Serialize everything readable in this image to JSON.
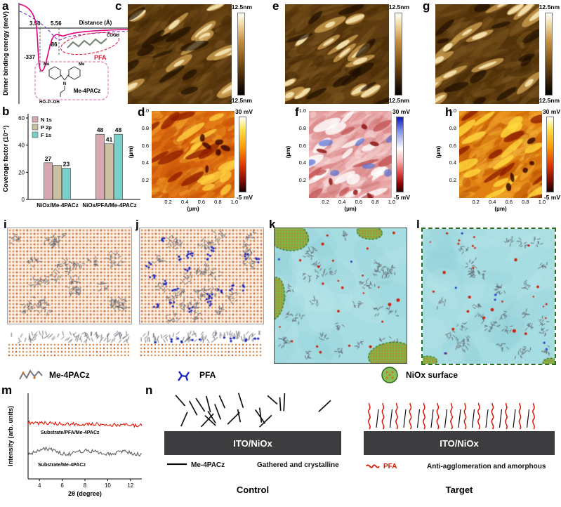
{
  "labels": {
    "a": "a",
    "b": "b",
    "c": "c",
    "d": "d",
    "e": "e",
    "f": "f",
    "g": "g",
    "h": "h",
    "i": "i",
    "j": "j",
    "k": "k",
    "l": "l",
    "m": "m",
    "n": "n"
  },
  "panel_a": {
    "ylabel": "Dimer binding energy (meV)",
    "xlabel": "Distance (Å)",
    "dist1": "3.50",
    "dist2": "5.56",
    "min_deep": "-337",
    "min_shallow": "-86",
    "pfa": "PFA",
    "me4pacz": "Me-4PACz",
    "cooh": "COOH",
    "n_atom": "N",
    "me1": "Me",
    "me2": "Me",
    "acid_group": "HO–P–OH"
  },
  "chart_data": [
    {
      "id": "a",
      "type": "line",
      "title": "Dimer binding energy vs distance",
      "xlabel": "Distance (Å)",
      "ylabel": "Dimer binding energy (meV)",
      "annotations": [
        {
          "x": "3.50",
          "y": "-337"
        },
        {
          "x": "5.56",
          "y": "-86"
        }
      ],
      "description": "Binding-energy curve with deep minimum -337 meV at 3.50 Å and shallow minimum -86 meV at 5.56 Å; inset molecular structures of PFA and Me-4PACz."
    },
    {
      "id": "b",
      "type": "bar",
      "ylabel": "Coverage factor (10⁻²)",
      "ylim": [
        0,
        60
      ],
      "yticks": [
        0,
        20,
        40,
        60
      ],
      "categories": [
        "NiOx/Me-4PACz",
        "NiOx/PFA/Me-4PACz"
      ],
      "series": [
        {
          "name": "N 1s",
          "color": "#d9a7b0",
          "values": [
            27,
            48
          ]
        },
        {
          "name": "P 2p",
          "color": "#cbbfa4",
          "values": [
            25,
            41
          ]
        },
        {
          "name": "F 1s",
          "color": "#79cfc9",
          "values": [
            23,
            48
          ]
        }
      ],
      "bar_labels": [
        [
          "27",
          "",
          "23"
        ],
        [
          "48",
          "41",
          "48"
        ]
      ],
      "legend_position": "top-left"
    },
    {
      "id": "m",
      "type": "line",
      "xlabel": "2θ (degree)",
      "ylabel": "Intensity (arb. units)",
      "xlim": [
        3,
        13
      ],
      "xticks": [
        4,
        6,
        8,
        10,
        12
      ],
      "series": [
        {
          "name": "Substrate/PFA/Me-4PACz",
          "color": "#e01505",
          "description": "upper flat noisy trace"
        },
        {
          "name": "Substrate/Me-4PACz",
          "color": "#606060",
          "description": "lower noisy trace with broad amorphous humps near 2θ ≈ 4.6, 8.2 and 11.4"
        }
      ]
    }
  ],
  "afm": {
    "scale_max": "12.5nm",
    "scale_min": "-12.5nm"
  },
  "kpfm": {
    "scale_max": "30 mV",
    "scale_min": "-5 mV",
    "ticks": [
      0.2,
      0.4,
      0.6,
      0.8,
      1.0
    ],
    "unit": "(μm)"
  },
  "legends": {
    "me4pacz": "Me-4PACz",
    "pfa": "PFA",
    "niox": "NiOx surface"
  },
  "panel_n": {
    "bar_label": "ITO/NiOx",
    "left_mol": "Me-4PACz",
    "left_desc": "Gathered and crystalline",
    "right_mol": "PFA",
    "right_desc": "Anti-agglomeration and amorphous",
    "left_title": "Control",
    "right_title": "Target"
  }
}
